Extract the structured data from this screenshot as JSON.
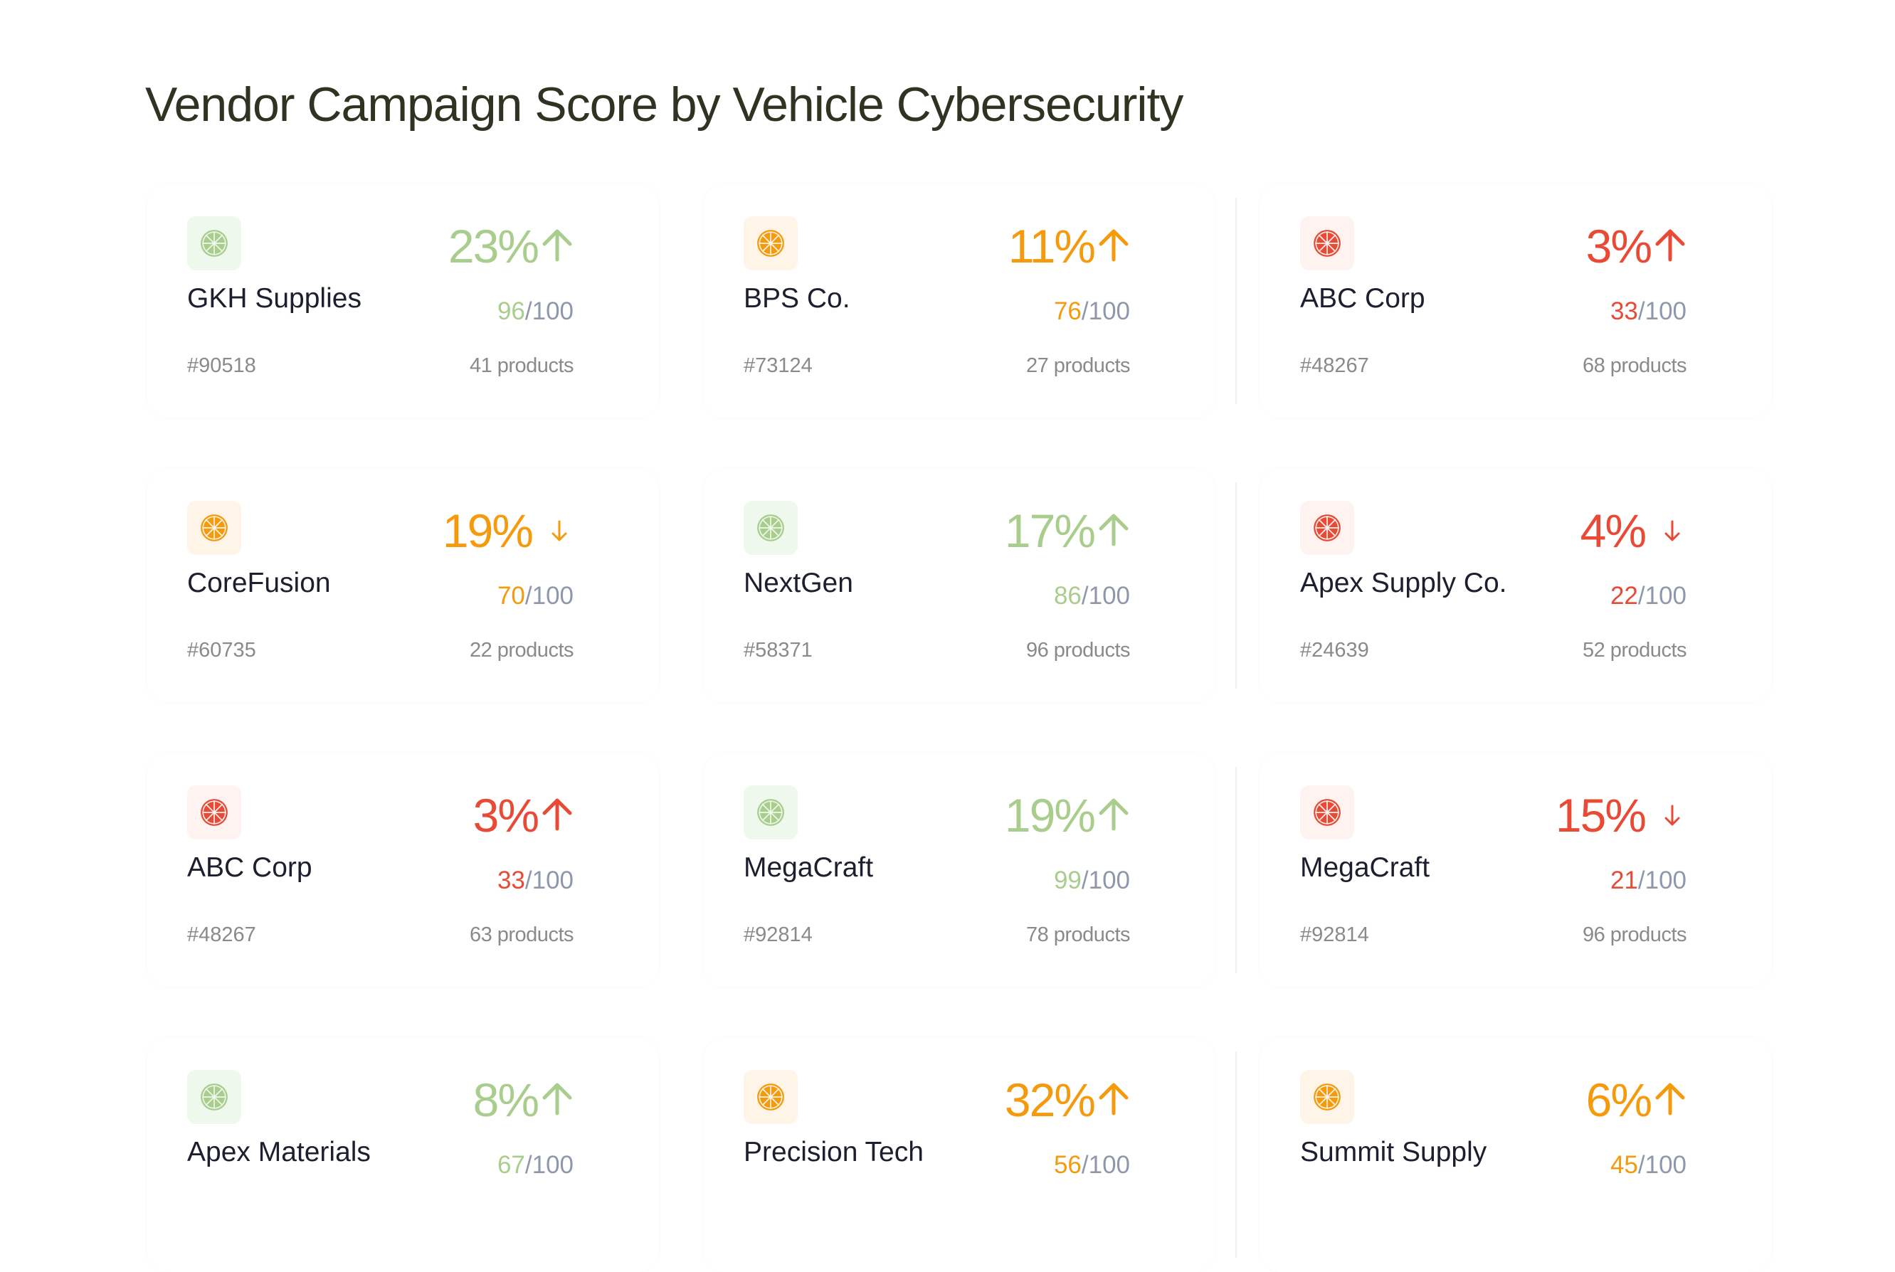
{
  "title": "Vendor Campaign Score by Vehicle Cybersecurity",
  "colors": {
    "green": "#a9cd8c",
    "orange": "#f59a0c",
    "red": "#e84a35",
    "denominator": "#8e98ac",
    "green_bg": "#eef8ec",
    "orange_bg": "#fff4e8",
    "red_bg": "#fff3f1"
  },
  "vendors": [
    {
      "name": "GKH Supplies",
      "id": "#90518",
      "change": "23%",
      "trend": "up",
      "score": "96",
      "max": "/100",
      "products": "41 products",
      "tone": "green"
    },
    {
      "name": "BPS Co.",
      "id": "#73124",
      "change": "11%",
      "trend": "up",
      "score": "76",
      "max": "/100",
      "products": "27 products",
      "tone": "orange"
    },
    {
      "name": "ABC Corp",
      "id": "#48267",
      "change": "3%",
      "trend": "up",
      "score": "33",
      "max": "/100",
      "products": "68 products",
      "tone": "red"
    },
    {
      "name": "CoreFusion",
      "id": "#60735",
      "change": "19%",
      "trend": "down",
      "score": "70",
      "max": "/100",
      "products": "22 products",
      "tone": "orange"
    },
    {
      "name": "NextGen",
      "id": "#58371",
      "change": "17%",
      "trend": "up",
      "score": "86",
      "max": "/100",
      "products": "96 products",
      "tone": "green"
    },
    {
      "name": "Apex Supply Co.",
      "id": "#24639",
      "change": "4%",
      "trend": "down",
      "score": "22",
      "max": "/100",
      "products": "52 products",
      "tone": "red"
    },
    {
      "name": "ABC Corp",
      "id": "#48267",
      "change": "3%",
      "trend": "up",
      "score": "33",
      "max": "/100",
      "products": "63 products",
      "tone": "red"
    },
    {
      "name": "MegaCraft",
      "id": "#92814",
      "change": "19%",
      "trend": "up",
      "score": "99",
      "max": "/100",
      "products": "78 products",
      "tone": "green"
    },
    {
      "name": "MegaCraft",
      "id": "#92814",
      "change": "15%",
      "trend": "down",
      "score": "21",
      "max": "/100",
      "products": "96 products",
      "tone": "red"
    },
    {
      "name": "Apex Materials",
      "id": "",
      "change": "8%",
      "trend": "up",
      "score": "67",
      "max": "/100",
      "products": "",
      "tone": "green"
    },
    {
      "name": "Precision Tech",
      "id": "",
      "change": "32%",
      "trend": "up",
      "score": "56",
      "max": "/100",
      "products": "",
      "tone": "orange"
    },
    {
      "name": "Summit Supply",
      "id": "",
      "change": "6%",
      "trend": "up",
      "score": "45",
      "max": "/100",
      "products": "",
      "tone": "orange"
    }
  ]
}
